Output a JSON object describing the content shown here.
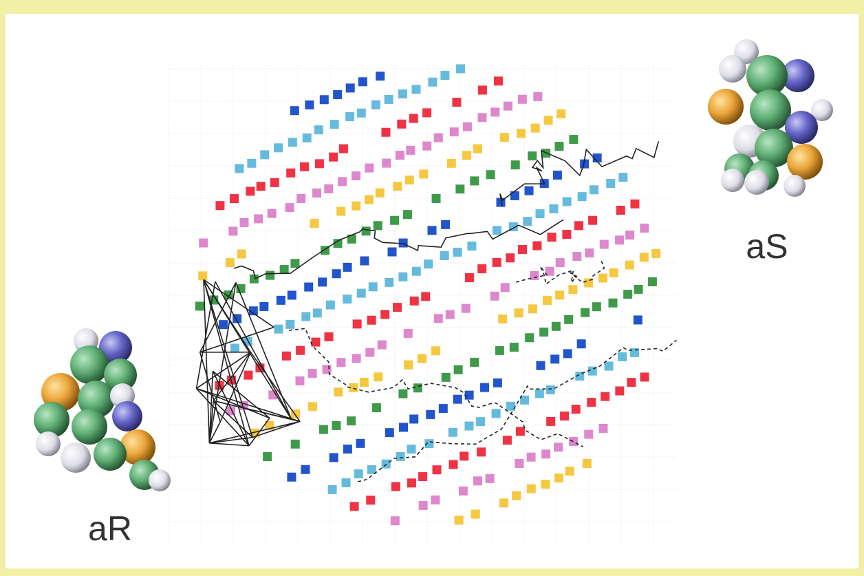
{
  "labels": {
    "left": "aR",
    "right": "aS"
  }
}
